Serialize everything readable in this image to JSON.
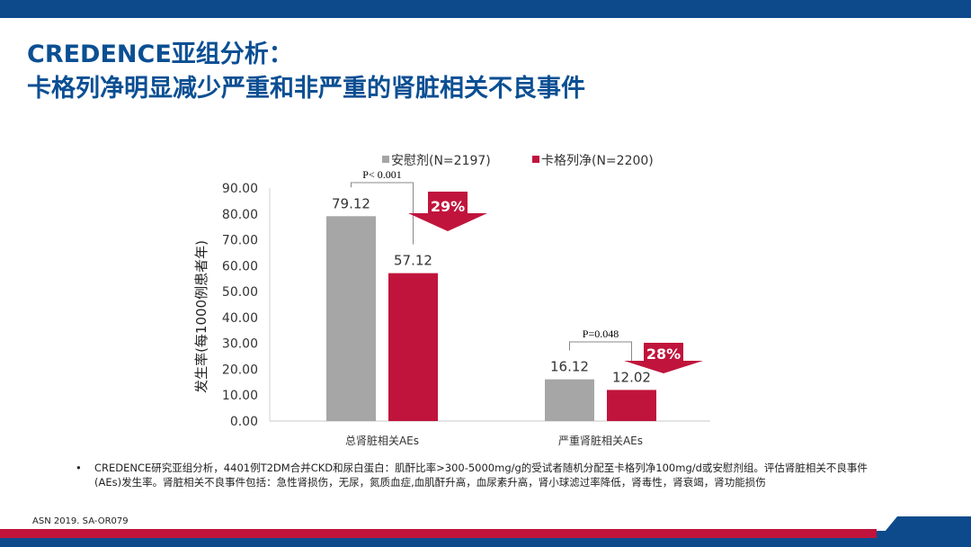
{
  "header": {
    "title_line1": "CREDENCE亚组分析：",
    "title_line2": "卡格列净明显减少严重和非严重的肾脏相关不良事件"
  },
  "colors": {
    "placebo": "#a6a6a6",
    "drug": "#c0143c",
    "brand": "#0c4a8c"
  },
  "chart_data": {
    "type": "bar",
    "categories": [
      "总肾脏相关AEs",
      "严重肾脏相关AEs"
    ],
    "series": [
      {
        "name": "安慰剂(N=2197)",
        "values": [
          79.12,
          16.12
        ]
      },
      {
        "name": "卡格列净(N=2200)",
        "values": [
          57.12,
          12.02
        ]
      }
    ],
    "value_labels": [
      [
        "79.12",
        "16.12"
      ],
      [
        "57.12",
        "12.02"
      ]
    ],
    "ylabel": "发生率(每1000例患者年)",
    "ylim": [
      0,
      90
    ],
    "yticks": [
      "0.00",
      "10.00",
      "20.00",
      "30.00",
      "40.00",
      "50.00",
      "60.00",
      "70.00",
      "80.00",
      "90.00"
    ],
    "legend_position": "top",
    "annotations": {
      "pvalues": [
        "P< 0.001",
        "P=0.048"
      ],
      "reductions": [
        "29%",
        "28%"
      ]
    }
  },
  "footnote": {
    "bullet": "•",
    "text": "CREDENCE研究亚组分析，4401例T2DM合并CKD和尿白蛋白：肌酐比率>300-5000mg/g的受试者随机分配至卡格列净100mg/d或安慰剂组。评估肾脏相关不良事件(AEs)发生率。肾脏相关不良事件包括：急性肾损伤，无尿，氮质血症,血肌酐升高，血尿素升高，肾小球滤过率降低，肾毒性，肾衰竭，肾功能损伤"
  },
  "source": "ASN 2019. SA-OR079"
}
